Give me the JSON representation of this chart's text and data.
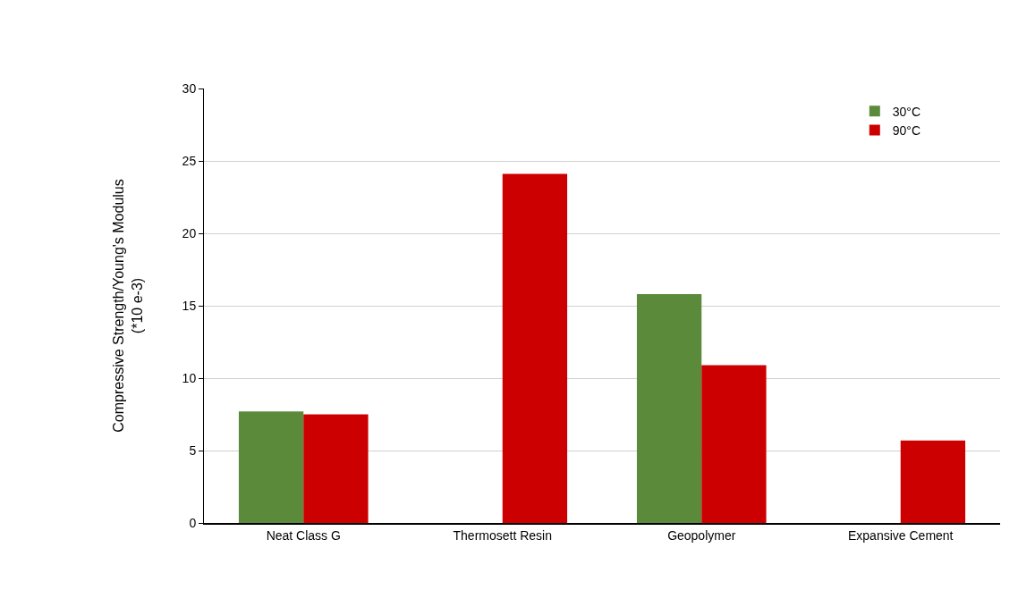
{
  "chart_data": {
    "type": "bar",
    "ylabel": "Compressive Strength/Young's Modulus\n(*10 e-3)",
    "categories": [
      "Neat Class G",
      "Thermosett Resin",
      "Geopolymer",
      "Expansive Cement"
    ],
    "series": [
      {
        "name": "30°C",
        "color": "#5a8a3a",
        "values": [
          7.7,
          null,
          15.8,
          null
        ]
      },
      {
        "name": "90°C",
        "color": "#cc0000",
        "values": [
          7.5,
          24.1,
          10.9,
          5.7
        ]
      }
    ],
    "ylim": [
      0,
      30
    ],
    "yticks": [
      0,
      5,
      10,
      15,
      20,
      25,
      30
    ],
    "grid": "y",
    "legend": "top right"
  }
}
